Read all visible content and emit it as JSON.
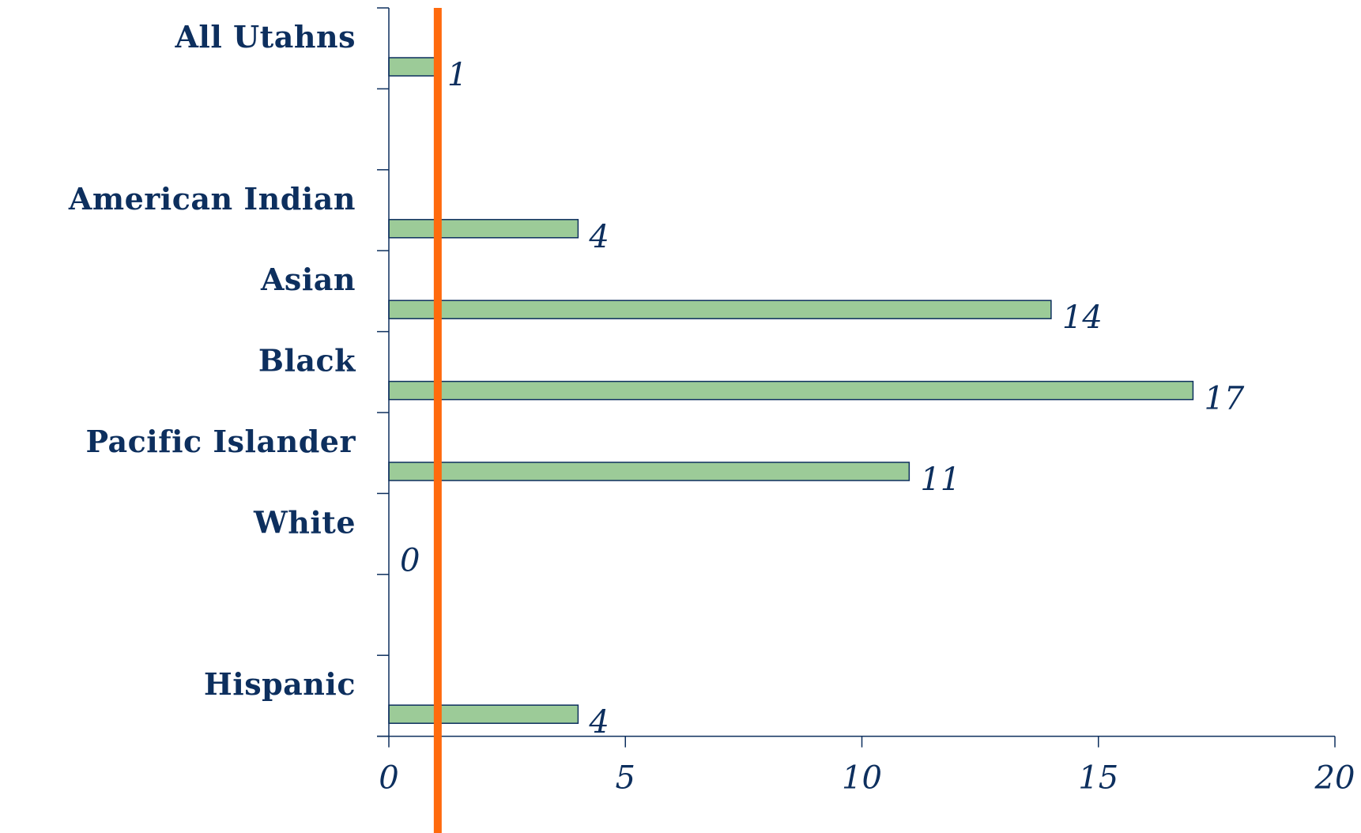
{
  "chart_data": {
    "type": "bar",
    "orientation": "horizontal",
    "title": "",
    "xlabel": "",
    "ylabel": "",
    "xlim": [
      0,
      20
    ],
    "x_ticks": [
      0,
      5,
      10,
      15,
      20
    ],
    "grid": false,
    "categories": [
      "All Utahns",
      "",
      "American Indian",
      "Asian",
      "Black",
      "Pacific Islander",
      "White",
      "",
      "Hispanic"
    ],
    "values": [
      1,
      null,
      4,
      14,
      17,
      11,
      0,
      null,
      4
    ],
    "value_labels": [
      "1",
      "",
      "4",
      "14",
      "17",
      "11",
      "0",
      "",
      "4"
    ],
    "reference_line": {
      "value": 1
    },
    "colors": {
      "bar_fill": "#9ccb98",
      "bar_stroke": "#0d2f5e",
      "text": "#0d2f5e",
      "reference_line": "#ff6a0d"
    }
  }
}
